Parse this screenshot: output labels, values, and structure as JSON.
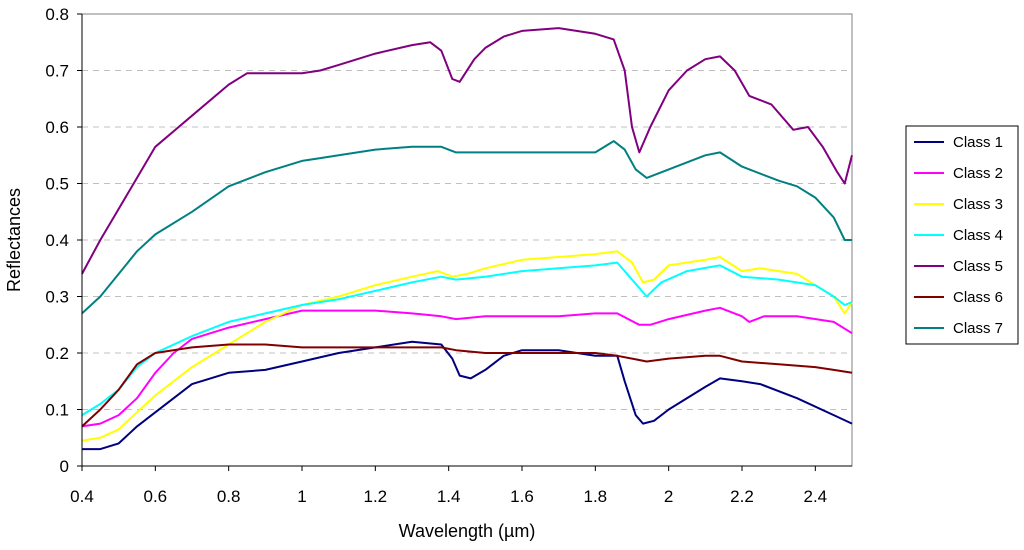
{
  "chart_data": {
    "type": "line",
    "xlabel": "Wavelength (µm)",
    "ylabel": "Reflectances",
    "xlim": [
      0.4,
      2.5
    ],
    "ylim": [
      0,
      0.8
    ],
    "x_ticks": [
      "0.4",
      "0.6",
      "0.8",
      "1",
      "1.2",
      "1.4",
      "1.6",
      "1.8",
      "2",
      "2.2",
      "2.4"
    ],
    "y_ticks": [
      "0",
      "0.1",
      "0.2",
      "0.3",
      "0.4",
      "0.5",
      "0.6",
      "0.7",
      "0.8"
    ],
    "grid": "horizontal dashed",
    "legend_position": "right",
    "series": [
      {
        "name": "Class 1",
        "color": "#000080",
        "points": [
          [
            0.4,
            0.03
          ],
          [
            0.45,
            0.03
          ],
          [
            0.5,
            0.04
          ],
          [
            0.55,
            0.07
          ],
          [
            0.6,
            0.095
          ],
          [
            0.7,
            0.145
          ],
          [
            0.8,
            0.165
          ],
          [
            0.9,
            0.17
          ],
          [
            1.0,
            0.185
          ],
          [
            1.1,
            0.2
          ],
          [
            1.2,
            0.21
          ],
          [
            1.3,
            0.22
          ],
          [
            1.38,
            0.215
          ],
          [
            1.41,
            0.19
          ],
          [
            1.43,
            0.16
          ],
          [
            1.46,
            0.155
          ],
          [
            1.5,
            0.17
          ],
          [
            1.55,
            0.195
          ],
          [
            1.6,
            0.205
          ],
          [
            1.7,
            0.205
          ],
          [
            1.8,
            0.195
          ],
          [
            1.86,
            0.195
          ],
          [
            1.88,
            0.15
          ],
          [
            1.91,
            0.09
          ],
          [
            1.93,
            0.075
          ],
          [
            1.96,
            0.08
          ],
          [
            2.0,
            0.1
          ],
          [
            2.1,
            0.14
          ],
          [
            2.14,
            0.155
          ],
          [
            2.2,
            0.15
          ],
          [
            2.25,
            0.145
          ],
          [
            2.35,
            0.12
          ],
          [
            2.45,
            0.09
          ],
          [
            2.5,
            0.075
          ]
        ]
      },
      {
        "name": "Class 2",
        "color": "#FF00FF",
        "points": [
          [
            0.4,
            0.07
          ],
          [
            0.45,
            0.075
          ],
          [
            0.5,
            0.09
          ],
          [
            0.55,
            0.12
          ],
          [
            0.6,
            0.165
          ],
          [
            0.65,
            0.2
          ],
          [
            0.7,
            0.225
          ],
          [
            0.8,
            0.245
          ],
          [
            0.9,
            0.26
          ],
          [
            1.0,
            0.275
          ],
          [
            1.1,
            0.275
          ],
          [
            1.2,
            0.275
          ],
          [
            1.3,
            0.27
          ],
          [
            1.38,
            0.265
          ],
          [
            1.42,
            0.26
          ],
          [
            1.5,
            0.265
          ],
          [
            1.6,
            0.265
          ],
          [
            1.7,
            0.265
          ],
          [
            1.8,
            0.27
          ],
          [
            1.86,
            0.27
          ],
          [
            1.92,
            0.25
          ],
          [
            1.95,
            0.25
          ],
          [
            2.0,
            0.26
          ],
          [
            2.1,
            0.275
          ],
          [
            2.14,
            0.28
          ],
          [
            2.2,
            0.265
          ],
          [
            2.22,
            0.255
          ],
          [
            2.26,
            0.265
          ],
          [
            2.35,
            0.265
          ],
          [
            2.45,
            0.255
          ],
          [
            2.5,
            0.235
          ]
        ]
      },
      {
        "name": "Class 3",
        "color": "#FFFF00",
        "points": [
          [
            0.4,
            0.045
          ],
          [
            0.45,
            0.05
          ],
          [
            0.5,
            0.065
          ],
          [
            0.55,
            0.095
          ],
          [
            0.6,
            0.125
          ],
          [
            0.7,
            0.175
          ],
          [
            0.8,
            0.215
          ],
          [
            0.9,
            0.255
          ],
          [
            1.0,
            0.285
          ],
          [
            1.1,
            0.3
          ],
          [
            1.2,
            0.32
          ],
          [
            1.3,
            0.335
          ],
          [
            1.37,
            0.345
          ],
          [
            1.41,
            0.335
          ],
          [
            1.45,
            0.34
          ],
          [
            1.5,
            0.35
          ],
          [
            1.6,
            0.365
          ],
          [
            1.7,
            0.37
          ],
          [
            1.8,
            0.375
          ],
          [
            1.86,
            0.38
          ],
          [
            1.9,
            0.36
          ],
          [
            1.93,
            0.325
          ],
          [
            1.96,
            0.33
          ],
          [
            2.0,
            0.355
          ],
          [
            2.1,
            0.365
          ],
          [
            2.14,
            0.37
          ],
          [
            2.2,
            0.345
          ],
          [
            2.25,
            0.35
          ],
          [
            2.35,
            0.34
          ],
          [
            2.45,
            0.3
          ],
          [
            2.48,
            0.27
          ],
          [
            2.5,
            0.29
          ]
        ]
      },
      {
        "name": "Class 4",
        "color": "#00FFFF",
        "points": [
          [
            0.4,
            0.09
          ],
          [
            0.45,
            0.11
          ],
          [
            0.5,
            0.135
          ],
          [
            0.55,
            0.175
          ],
          [
            0.6,
            0.2
          ],
          [
            0.7,
            0.23
          ],
          [
            0.8,
            0.255
          ],
          [
            0.9,
            0.27
          ],
          [
            1.0,
            0.285
          ],
          [
            1.1,
            0.295
          ],
          [
            1.2,
            0.31
          ],
          [
            1.3,
            0.325
          ],
          [
            1.38,
            0.335
          ],
          [
            1.42,
            0.33
          ],
          [
            1.5,
            0.335
          ],
          [
            1.6,
            0.345
          ],
          [
            1.7,
            0.35
          ],
          [
            1.8,
            0.355
          ],
          [
            1.86,
            0.36
          ],
          [
            1.9,
            0.33
          ],
          [
            1.94,
            0.3
          ],
          [
            1.98,
            0.325
          ],
          [
            2.05,
            0.345
          ],
          [
            2.14,
            0.355
          ],
          [
            2.2,
            0.335
          ],
          [
            2.3,
            0.33
          ],
          [
            2.4,
            0.32
          ],
          [
            2.45,
            0.3
          ],
          [
            2.48,
            0.285
          ],
          [
            2.5,
            0.29
          ]
        ]
      },
      {
        "name": "Class 5",
        "color": "#800080",
        "points": [
          [
            0.4,
            0.34
          ],
          [
            0.45,
            0.4
          ],
          [
            0.5,
            0.455
          ],
          [
            0.55,
            0.51
          ],
          [
            0.6,
            0.565
          ],
          [
            0.7,
            0.62
          ],
          [
            0.8,
            0.675
          ],
          [
            0.85,
            0.695
          ],
          [
            0.9,
            0.695
          ],
          [
            1.0,
            0.695
          ],
          [
            1.05,
            0.7
          ],
          [
            1.1,
            0.71
          ],
          [
            1.2,
            0.73
          ],
          [
            1.3,
            0.745
          ],
          [
            1.35,
            0.75
          ],
          [
            1.38,
            0.735
          ],
          [
            1.41,
            0.685
          ],
          [
            1.43,
            0.68
          ],
          [
            1.47,
            0.72
          ],
          [
            1.5,
            0.74
          ],
          [
            1.55,
            0.76
          ],
          [
            1.6,
            0.77
          ],
          [
            1.7,
            0.775
          ],
          [
            1.8,
            0.765
          ],
          [
            1.85,
            0.755
          ],
          [
            1.88,
            0.7
          ],
          [
            1.9,
            0.6
          ],
          [
            1.92,
            0.555
          ],
          [
            1.95,
            0.6
          ],
          [
            2.0,
            0.665
          ],
          [
            2.05,
            0.7
          ],
          [
            2.1,
            0.72
          ],
          [
            2.14,
            0.725
          ],
          [
            2.18,
            0.7
          ],
          [
            2.22,
            0.655
          ],
          [
            2.28,
            0.64
          ],
          [
            2.34,
            0.595
          ],
          [
            2.38,
            0.6
          ],
          [
            2.42,
            0.565
          ],
          [
            2.46,
            0.52
          ],
          [
            2.48,
            0.5
          ],
          [
            2.5,
            0.55
          ]
        ]
      },
      {
        "name": "Class 6",
        "color": "#800000",
        "points": [
          [
            0.4,
            0.07
          ],
          [
            0.45,
            0.1
          ],
          [
            0.5,
            0.135
          ],
          [
            0.55,
            0.18
          ],
          [
            0.6,
            0.2
          ],
          [
            0.7,
            0.21
          ],
          [
            0.8,
            0.215
          ],
          [
            0.9,
            0.215
          ],
          [
            1.0,
            0.21
          ],
          [
            1.1,
            0.21
          ],
          [
            1.2,
            0.21
          ],
          [
            1.3,
            0.21
          ],
          [
            1.38,
            0.21
          ],
          [
            1.42,
            0.205
          ],
          [
            1.5,
            0.2
          ],
          [
            1.6,
            0.2
          ],
          [
            1.7,
            0.2
          ],
          [
            1.8,
            0.2
          ],
          [
            1.86,
            0.195
          ],
          [
            1.9,
            0.19
          ],
          [
            1.94,
            0.185
          ],
          [
            2.0,
            0.19
          ],
          [
            2.1,
            0.195
          ],
          [
            2.14,
            0.195
          ],
          [
            2.2,
            0.185
          ],
          [
            2.3,
            0.18
          ],
          [
            2.4,
            0.175
          ],
          [
            2.45,
            0.17
          ],
          [
            2.5,
            0.165
          ]
        ]
      },
      {
        "name": "Class 7",
        "color": "#008080",
        "points": [
          [
            0.4,
            0.27
          ],
          [
            0.45,
            0.3
          ],
          [
            0.5,
            0.34
          ],
          [
            0.55,
            0.38
          ],
          [
            0.6,
            0.41
          ],
          [
            0.7,
            0.45
          ],
          [
            0.8,
            0.495
          ],
          [
            0.9,
            0.52
          ],
          [
            1.0,
            0.54
          ],
          [
            1.05,
            0.545
          ],
          [
            1.1,
            0.55
          ],
          [
            1.2,
            0.56
          ],
          [
            1.3,
            0.565
          ],
          [
            1.38,
            0.565
          ],
          [
            1.42,
            0.555
          ],
          [
            1.5,
            0.555
          ],
          [
            1.6,
            0.555
          ],
          [
            1.7,
            0.555
          ],
          [
            1.8,
            0.555
          ],
          [
            1.85,
            0.575
          ],
          [
            1.88,
            0.56
          ],
          [
            1.91,
            0.525
          ],
          [
            1.94,
            0.51
          ],
          [
            2.0,
            0.525
          ],
          [
            2.1,
            0.55
          ],
          [
            2.14,
            0.555
          ],
          [
            2.2,
            0.53
          ],
          [
            2.3,
            0.505
          ],
          [
            2.35,
            0.495
          ],
          [
            2.4,
            0.475
          ],
          [
            2.45,
            0.44
          ],
          [
            2.48,
            0.4
          ],
          [
            2.5,
            0.4
          ]
        ]
      }
    ]
  }
}
